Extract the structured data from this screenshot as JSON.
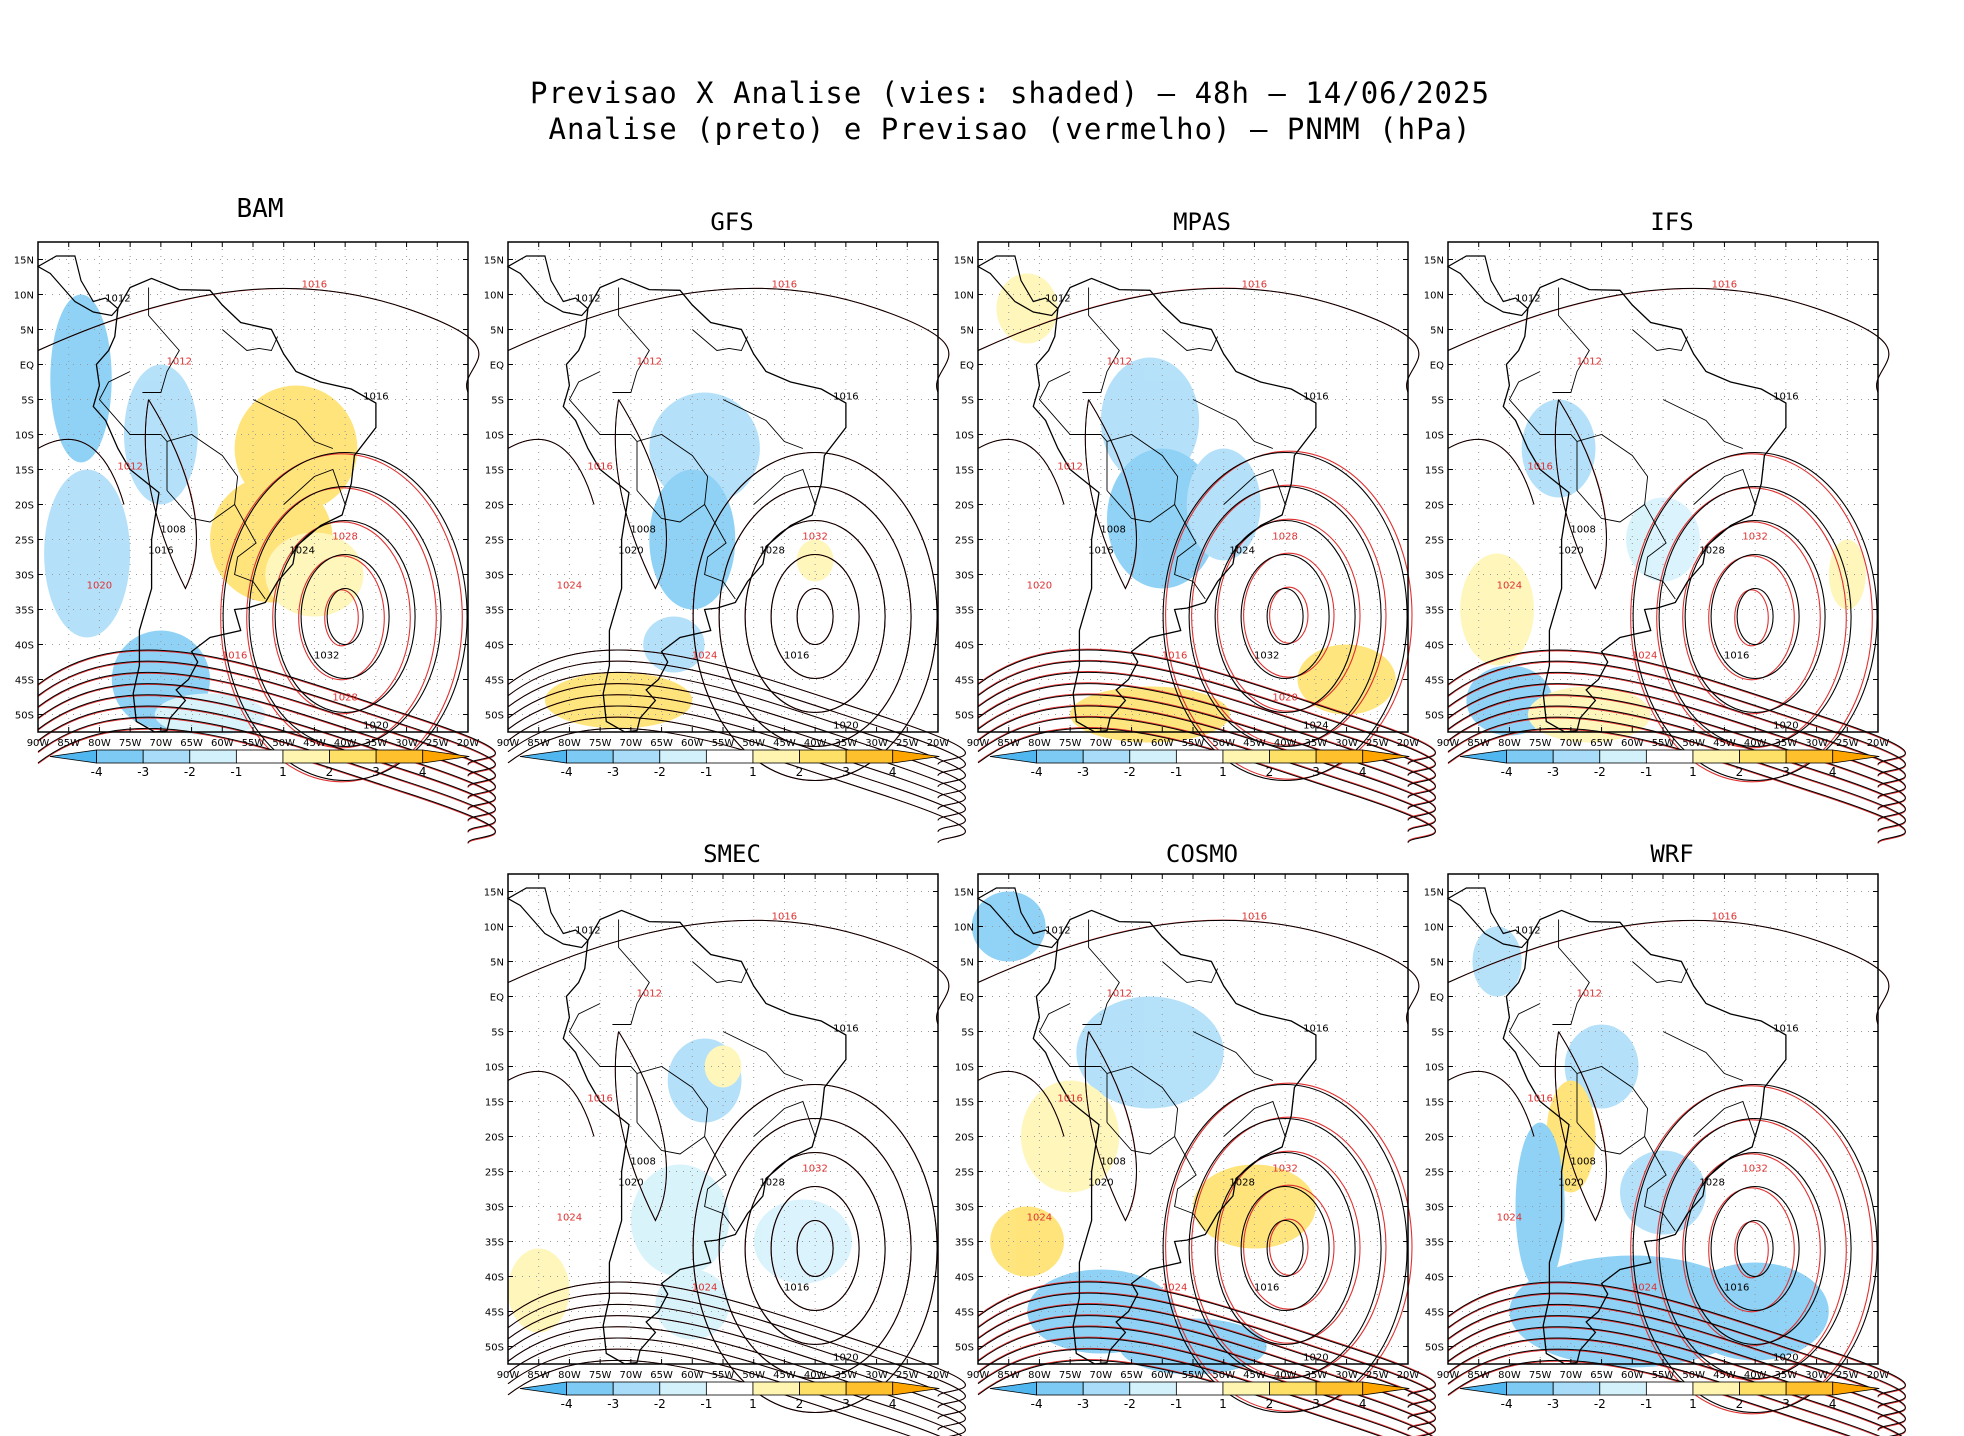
{
  "title_line1": "Previsao X Analise (vies: shaded) – 48h – 14/06/2025",
  "title_line2": "Analise (preto) e Previsao (vermelho) – PNMM (hPa)",
  "lat_labels": [
    "15N",
    "10N",
    "5N",
    "EQ",
    "5S",
    "10S",
    "15S",
    "20S",
    "25S",
    "30S",
    "35S",
    "40S",
    "45S",
    "50S"
  ],
  "lon_labels": [
    "90W",
    "85W",
    "80W",
    "75W",
    "70W",
    "65W",
    "60W",
    "55W",
    "50W",
    "45W",
    "40W",
    "35W",
    "30W",
    "25W",
    "20W"
  ],
  "colorbar_labels": [
    "-4",
    "-3",
    "-2",
    "-1",
    "1",
    "2",
    "3",
    "4"
  ],
  "colorbar_colors": [
    "#4fb6f0",
    "#7dcbf4",
    "#a8dcf8",
    "#d3f1fb",
    "#ffffff",
    "#fff5b0",
    "#ffe066",
    "#ffc02e",
    "#ffa500"
  ],
  "colors": {
    "analysis": "#000000",
    "forecast": "#e03030",
    "negative_bias": "#7dcbf4",
    "positive_bias": "#ffe066"
  },
  "panels": [
    {
      "name": "BAM",
      "labels": [
        "1012",
        "1016",
        "1016",
        "1012",
        "1008",
        "1012",
        "1016",
        "1020",
        "1024",
        "1028",
        "1032",
        "1016",
        "1020",
        "1028"
      ]
    },
    {
      "name": "GFS",
      "labels": [
        "1012",
        "1016",
        "1016",
        "1012",
        "1008",
        "1016",
        "1020",
        "1024",
        "1028",
        "1032",
        "1016",
        "1024",
        "1020"
      ]
    },
    {
      "name": "MPAS",
      "labels": [
        "1012",
        "1016",
        "1016",
        "1012",
        "1008",
        "1012",
        "1016",
        "1020",
        "1024",
        "1028",
        "1032",
        "1016",
        "1024",
        "1020"
      ]
    },
    {
      "name": "IFS",
      "labels": [
        "1012",
        "1016",
        "1016",
        "1012",
        "1008",
        "1016",
        "1020",
        "1024",
        "1028",
        "1032",
        "1016",
        "1024",
        "1020"
      ]
    },
    {
      "name": "SMEC",
      "labels": [
        "1012",
        "1016",
        "1016",
        "1012",
        "1008",
        "1016",
        "1020",
        "1024",
        "1028",
        "1032",
        "1016",
        "1024",
        "1020"
      ]
    },
    {
      "name": "COSMO",
      "labels": [
        "1012",
        "1016",
        "1016",
        "1012",
        "1008",
        "1016",
        "1020",
        "1024",
        "1028",
        "1032",
        "1016",
        "1024",
        "1020"
      ]
    },
    {
      "name": "WRF",
      "labels": [
        "1012",
        "1016",
        "1016",
        "1012",
        "1008",
        "1016",
        "1020",
        "1024",
        "1028",
        "1032",
        "1016",
        "1024",
        "1020"
      ]
    }
  ]
}
